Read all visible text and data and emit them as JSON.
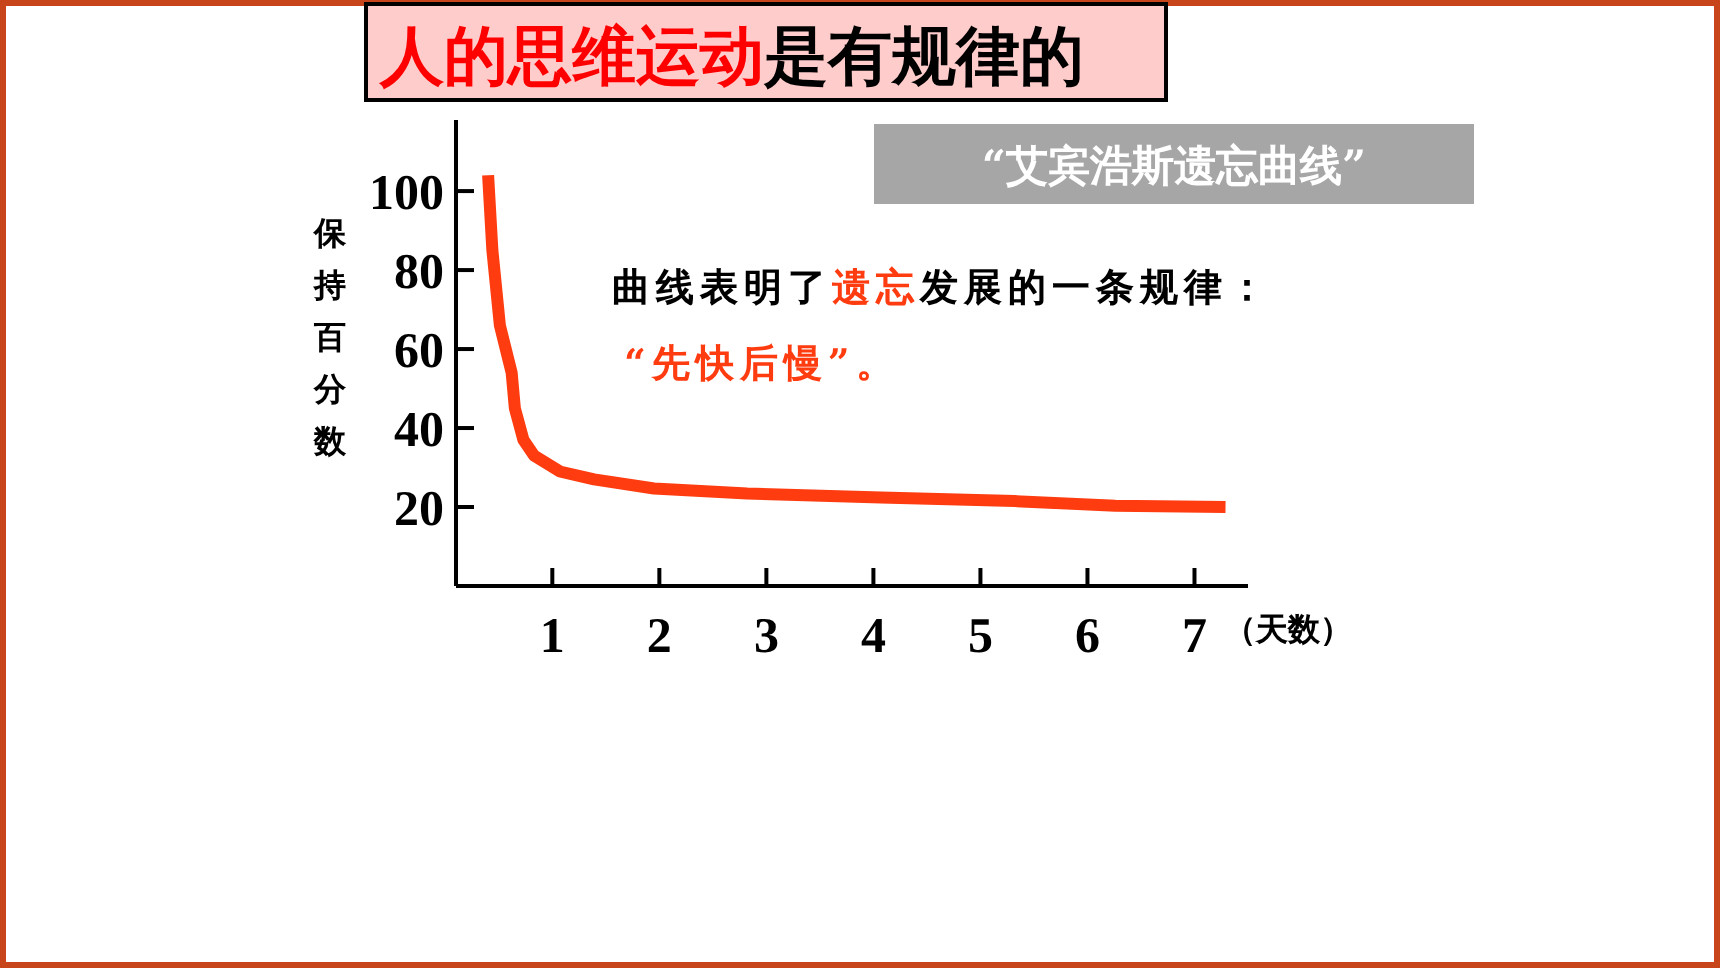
{
  "chart_data": {
    "type": "line",
    "title": "人的思维运动",
    "subtitle": "是有规律的",
    "annotations": [
      "“艾宾浩斯遗忘曲线”",
      "曲线表明了",
      "遗忘",
      "发展的一条规律：",
      "“先快后慢”。"
    ],
    "xlabel": "（天数）",
    "ylabel": "保持百分数",
    "x": [
      0.4,
      0.44,
      0.51,
      0.62,
      0.65,
      0.73,
      0.83,
      1.07,
      1.39,
      1.95,
      2.82,
      4.07,
      5.32,
      6.26,
      7.29
    ],
    "series": [
      {
        "color": "#ff3b10",
        "values": [
          104,
          85,
          66,
          54,
          45,
          37,
          33,
          29,
          27,
          24.7,
          23.4,
          22.4,
          21.5,
          20.3,
          20
        ]
      }
    ],
    "xlim": [
      0.1,
      7.5
    ],
    "ylim": [
      0,
      118
    ],
    "xticks": [
      1,
      2,
      3,
      4,
      5,
      6,
      7
    ],
    "yticks": [
      20,
      40,
      60,
      80,
      100
    ],
    "grid": false,
    "marker": "none",
    "line_style": "solid"
  }
}
